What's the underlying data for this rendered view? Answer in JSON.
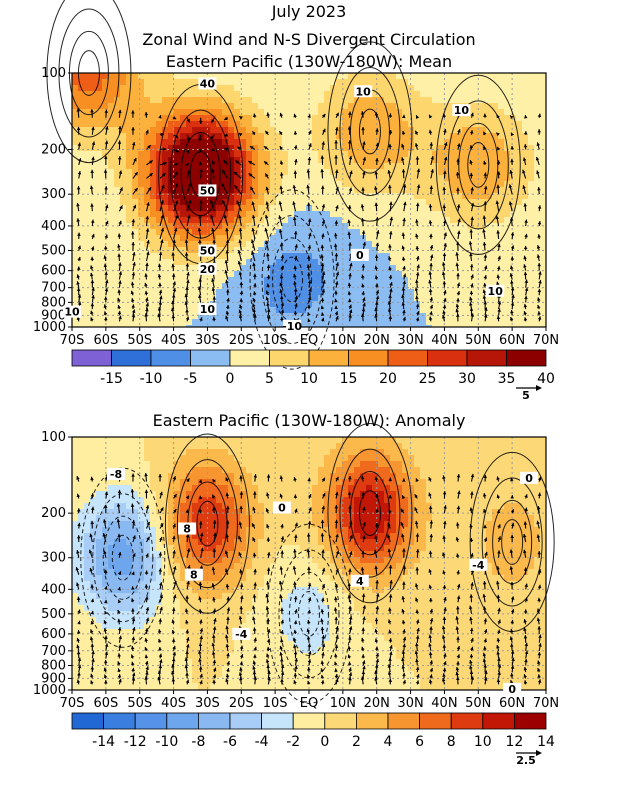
{
  "header": {
    "line1": "July 2023",
    "line2": "Zonal Wind and N-S Divergent Circulation",
    "line3": "Eastern Pacific (130W-180W): Mean"
  },
  "chart_data": [
    {
      "type": "heatmap",
      "title": "Eastern Pacific (130W-180W): Mean",
      "x_ticks": [
        "70S",
        "60S",
        "50S",
        "40S",
        "30S",
        "20S",
        "10S",
        "EQ",
        "10N",
        "20N",
        "30N",
        "40N",
        "50N",
        "60N",
        "70N"
      ],
      "y_ticks": [
        "100",
        "200",
        "300",
        "400",
        "500",
        "600",
        "700",
        "800",
        "900",
        "1000"
      ],
      "y_values_hpa": [
        100,
        200,
        300,
        400,
        500,
        600,
        700,
        800,
        900,
        1000
      ],
      "y_scale": "log",
      "colorbar": {
        "labels": [
          "-15",
          "-10",
          "-5",
          "0",
          "5",
          "10",
          "15",
          "20",
          "25",
          "30",
          "35",
          "40"
        ],
        "colors": [
          "#7f61d6",
          "#2e6fd8",
          "#4f8fe6",
          "#8cbdf2",
          "#fff0a8",
          "#fdd66e",
          "#fcb13c",
          "#f88f23",
          "#ef5e16",
          "#d93010",
          "#b51608",
          "#8c0000"
        ],
        "bounds": [
          -20,
          -15,
          -10,
          -5,
          0,
          5,
          10,
          15,
          20,
          25,
          30,
          35,
          40
        ]
      },
      "contour_labels": [
        "40",
        "50",
        "50",
        "20",
        "10",
        "10",
        "10",
        "10",
        "0",
        "10",
        "-10"
      ],
      "reference_vector_label": "5",
      "fields": [
        {
          "lat": -32,
          "p": 250,
          "value": 52
        },
        {
          "lat": -65,
          "p": 100,
          "value": 22
        },
        {
          "lat": 18,
          "p": 170,
          "value": 14
        },
        {
          "lat": 50,
          "p": 230,
          "value": 14
        },
        {
          "lat": -5,
          "p": 650,
          "value": -7
        }
      ]
    },
    {
      "type": "heatmap",
      "title": "Eastern Pacific (130W-180W): Anomaly",
      "x_ticks": [
        "70S",
        "60S",
        "50S",
        "40S",
        "30S",
        "20S",
        "10S",
        "EQ",
        "10N",
        "20N",
        "30N",
        "40N",
        "50N",
        "60N",
        "70N"
      ],
      "y_ticks": [
        "100",
        "200",
        "300",
        "400",
        "500",
        "600",
        "700",
        "800",
        "900",
        "1000"
      ],
      "y_values_hpa": [
        100,
        200,
        300,
        400,
        500,
        600,
        700,
        800,
        900,
        1000
      ],
      "y_scale": "log",
      "colorbar": {
        "labels": [
          "-14",
          "-12",
          "-10",
          "-8",
          "-6",
          "-4",
          "-2",
          "0",
          "2",
          "4",
          "6",
          "8",
          "10",
          "12",
          "14"
        ],
        "colors": [
          "#2268d4",
          "#3a7ee0",
          "#5592e8",
          "#6ea6ee",
          "#8ab9f2",
          "#a8cdf6",
          "#c6e4fa",
          "#ffeea0",
          "#fcd877",
          "#fbb84b",
          "#f79530",
          "#f06a1e",
          "#de3c10",
          "#c21606",
          "#9c0000"
        ],
        "bounds": [
          -16,
          -14,
          -12,
          -10,
          -8,
          -6,
          -4,
          -2,
          0,
          2,
          4,
          6,
          8,
          10,
          12,
          14
        ]
      },
      "contour_labels": [
        "-8",
        "0",
        "8",
        "8",
        "-4",
        "-4",
        "4",
        "0",
        "0"
      ],
      "reference_vector_label": "2.5",
      "fields": [
        {
          "lat": -55,
          "p": 300,
          "value": -9
        },
        {
          "lat": -30,
          "p": 220,
          "value": 10
        },
        {
          "lat": 18,
          "p": 200,
          "value": 12
        },
        {
          "lat": 0,
          "p": 500,
          "value": -3
        },
        {
          "lat": 60,
          "p": 260,
          "value": 3
        }
      ]
    }
  ]
}
